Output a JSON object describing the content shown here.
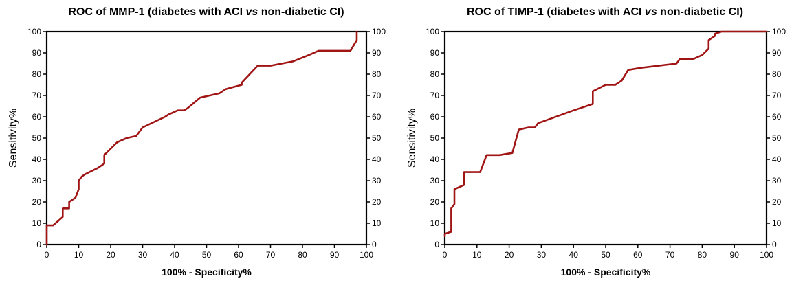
{
  "chart_data": [
    {
      "type": "line",
      "title_main": "ROC of MMP-1 (diabetes with ACI ",
      "title_italic": "vs",
      "title_rest": " non-diabetic CI)",
      "xlabel": "100% - Specificity%",
      "ylabel": "Sensitivity%",
      "xlim": [
        0,
        100
      ],
      "ylim": [
        0,
        100
      ],
      "ticks": [
        "0",
        "10",
        "20",
        "30",
        "40",
        "50",
        "60",
        "70",
        "80",
        "90",
        "100"
      ],
      "grid": false,
      "color": "#a01414",
      "x": [
        0,
        0,
        2,
        5,
        5,
        7,
        7,
        9,
        10,
        10,
        11,
        12,
        16,
        18,
        18,
        22,
        25,
        28,
        30,
        37,
        38,
        41,
        43,
        44,
        48,
        54,
        56,
        61,
        61,
        66,
        70,
        77,
        82,
        85,
        95,
        97,
        97
      ],
      "y": [
        0,
        9,
        9,
        13,
        17,
        17,
        20,
        22,
        26,
        30,
        32,
        33,
        36,
        38,
        42,
        48,
        50,
        51,
        55,
        60,
        61,
        63,
        63,
        64,
        69,
        71,
        73,
        75,
        76,
        84,
        84,
        86,
        89,
        91,
        91,
        96,
        100
      ]
    },
    {
      "type": "line",
      "title_main": "ROC of TIMP-1 (diabetes with ACI ",
      "title_italic": "vs",
      "title_rest": " non-diabetic CI)",
      "xlabel": "100% - Specificity%",
      "ylabel": "Sensitivity%",
      "xlim": [
        0,
        100
      ],
      "ylim": [
        0,
        100
      ],
      "ticks": [
        "0",
        "10",
        "20",
        "30",
        "40",
        "50",
        "60",
        "70",
        "80",
        "90",
        "100"
      ],
      "grid": false,
      "color": "#a01414",
      "x": [
        0,
        0,
        2,
        2,
        3,
        3,
        6,
        6,
        10,
        11,
        13,
        17,
        21,
        23,
        26,
        28,
        29,
        40,
        46,
        46,
        50,
        53,
        55,
        57,
        61,
        72,
        73,
        77,
        80,
        82,
        82,
        84,
        84,
        86,
        87,
        100
      ],
      "y": [
        4,
        5,
        6,
        17,
        19,
        26,
        28,
        34,
        34,
        34,
        42,
        42,
        43,
        54,
        55,
        55,
        57,
        63,
        66,
        72,
        75,
        75,
        77,
        82,
        83,
        85,
        87,
        87,
        89,
        92,
        96,
        98,
        99,
        100,
        100,
        100
      ]
    }
  ]
}
